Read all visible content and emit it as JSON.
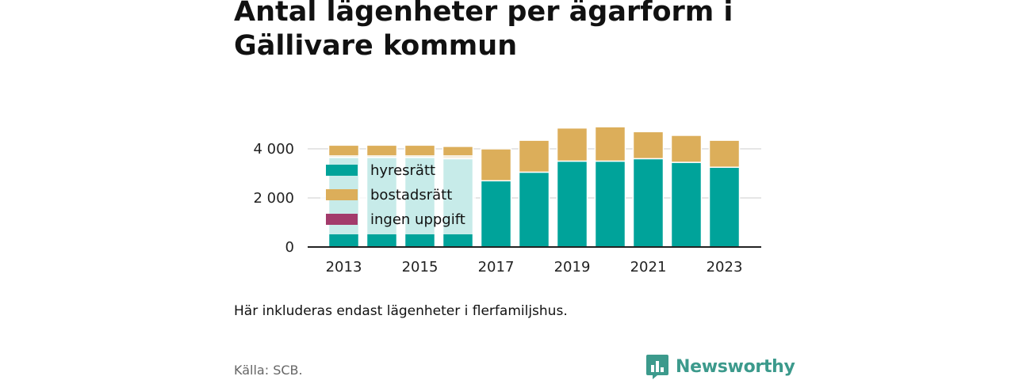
{
  "title": "Antal lägenheter per ägarform i Gällivare kommun",
  "note": "Här inkluderas endast lägenheter i flerfamiljshus.",
  "source": "Källa: SCB.",
  "brand": {
    "name": "Newsworthy",
    "icon": "newsworthy-logo-icon",
    "color": "#3c9a8c"
  },
  "chart_data": {
    "type": "bar",
    "stacked": true,
    "x": [
      2013,
      2014,
      2015,
      2016,
      2017,
      2018,
      2019,
      2020,
      2021,
      2022,
      2023
    ],
    "x_tick_labels": [
      "2013",
      "2015",
      "2017",
      "2019",
      "2021",
      "2023"
    ],
    "y_tick_labels": [
      "0",
      "2 000",
      "4 000"
    ],
    "ylim": [
      0,
      5000
    ],
    "grid": true,
    "legend_position": "top-left inside plot",
    "series": [
      {
        "name": "hyresrätt",
        "color": "#00a39a",
        "values": [
          3650,
          3650,
          3650,
          3600,
          2700,
          3050,
          3500,
          3500,
          3600,
          3450,
          3250
        ]
      },
      {
        "name": "bostadsrätt",
        "color": "#dcae5a",
        "values": [
          500,
          500,
          500,
          500,
          1300,
          1300,
          1350,
          1400,
          1100,
          1100,
          1100
        ]
      },
      {
        "name": "ingen uppgift",
        "color": "#a33b6b",
        "values": [
          0,
          0,
          0,
          0,
          0,
          0,
          0,
          0,
          0,
          0,
          0
        ]
      }
    ]
  }
}
